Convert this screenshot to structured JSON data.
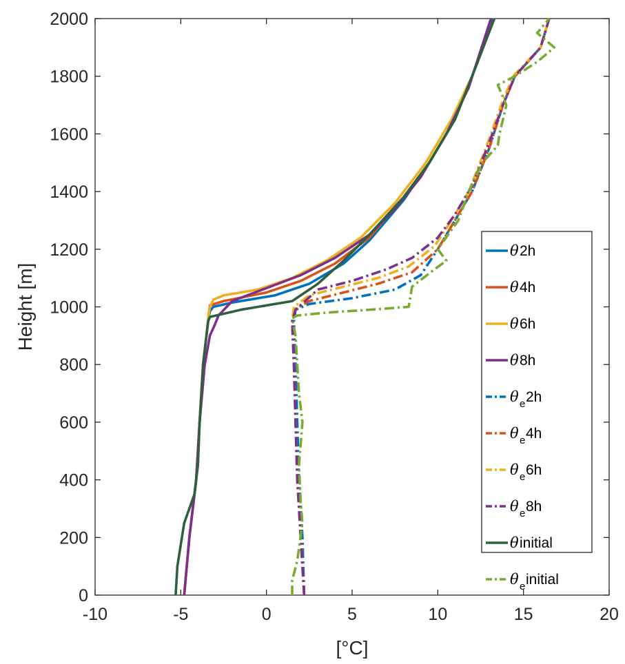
{
  "chart_data": {
    "type": "line",
    "title": "",
    "xlabel": "[°C]",
    "ylabel": "Height [m]",
    "xlim": [
      -10,
      20
    ],
    "ylim": [
      0,
      2000
    ],
    "xticks": [
      -10,
      -5,
      0,
      5,
      10,
      15,
      20
    ],
    "xtick_labels": [
      "-10",
      "-5",
      "0",
      "5",
      "10",
      "15",
      "20"
    ],
    "yticks": [
      0,
      200,
      400,
      600,
      800,
      1000,
      1200,
      1400,
      1600,
      1800,
      2000
    ],
    "ytick_labels": [
      "0",
      "200",
      "400",
      "600",
      "800",
      "1000",
      "1200",
      "1400",
      "1600",
      "1800",
      "2000"
    ],
    "grid": false,
    "legend_position": "right, middle",
    "series": [
      {
        "name": "θ 2h",
        "sym": "θ",
        "sub": "",
        "label": " 2h",
        "color": "#0072BD",
        "dash": "solid",
        "x": [
          -4.8,
          -4.5,
          -4.1,
          -3.9,
          -3.7,
          -3.5,
          -3.4,
          -3.3,
          -3.1,
          -2.0,
          0.5,
          2.5,
          4.5,
          6.0,
          8.0,
          9.5,
          11.0,
          12.0,
          13.2
        ],
        "y": [
          0,
          200,
          400,
          600,
          800,
          900,
          950,
          985,
          1000,
          1015,
          1040,
          1080,
          1150,
          1230,
          1370,
          1500,
          1650,
          1800,
          2000
        ]
      },
      {
        "name": "θ 4h",
        "sym": "θ",
        "sub": "",
        "label": " 4h",
        "color": "#D95319",
        "dash": "solid",
        "x": [
          -4.8,
          -4.5,
          -4.1,
          -3.9,
          -3.7,
          -3.5,
          -3.4,
          -3.3,
          -2.5,
          0.0,
          2.0,
          4.0,
          6.0,
          8.0,
          9.5,
          11.0,
          12.0,
          13.3
        ],
        "y": [
          0,
          200,
          400,
          600,
          800,
          900,
          960,
          1005,
          1020,
          1050,
          1090,
          1150,
          1240,
          1380,
          1500,
          1650,
          1800,
          2000
        ]
      },
      {
        "name": "θ 6h",
        "sym": "θ",
        "sub": "",
        "label": " 6h",
        "color": "#EDB120",
        "dash": "solid",
        "x": [
          -4.8,
          -4.5,
          -4.1,
          -3.9,
          -3.7,
          -3.5,
          -3.4,
          -3.3,
          -3.1,
          -2.5,
          -0.5,
          1.5,
          3.5,
          5.5,
          7.5,
          9.3,
          10.8,
          12.0,
          13.3
        ],
        "y": [
          0,
          200,
          400,
          600,
          800,
          900,
          960,
          1000,
          1025,
          1040,
          1060,
          1100,
          1160,
          1240,
          1360,
          1500,
          1650,
          1800,
          2000
        ]
      },
      {
        "name": "θ 8h",
        "sym": "θ",
        "sub": "",
        "label": " 8h",
        "color": "#7E2F8E",
        "dash": "solid",
        "x": [
          -4.8,
          -4.5,
          -4.1,
          -3.9,
          -3.6,
          -3.3,
          -3.0,
          -2.8,
          -2.0,
          0.0,
          2.0,
          4.0,
          6.0,
          7.5,
          9.0,
          10.5,
          11.8,
          13.1
        ],
        "y": [
          0,
          200,
          400,
          600,
          800,
          900,
          940,
          970,
          1020,
          1065,
          1110,
          1170,
          1250,
          1340,
          1450,
          1600,
          1760,
          2000
        ]
      },
      {
        "name": "θe 2h",
        "sym": "θ",
        "sub": "e",
        "label": " 2h",
        "color": "#0072BD",
        "dash": "dashdot",
        "x": [
          2.2,
          2.1,
          1.9,
          1.8,
          1.7,
          1.6,
          1.7,
          2.5,
          5.0,
          7.5,
          9.0,
          10.0,
          11.0,
          12.0,
          13.0,
          13.8,
          14.5,
          16.0,
          16.5
        ],
        "y": [
          0,
          200,
          400,
          600,
          800,
          950,
          990,
          1010,
          1030,
          1060,
          1110,
          1200,
          1300,
          1400,
          1550,
          1700,
          1800,
          1900,
          2000
        ]
      },
      {
        "name": "θe 4h",
        "sym": "θ",
        "sub": "e",
        "label": " 4h",
        "color": "#D95319",
        "dash": "dashdot",
        "x": [
          2.2,
          2.0,
          1.8,
          1.7,
          1.6,
          1.5,
          1.6,
          2.5,
          4.5,
          6.5,
          8.5,
          10.0,
          11.0,
          12.0,
          13.0,
          13.8,
          14.5,
          16.0,
          16.5
        ],
        "y": [
          0,
          200,
          400,
          600,
          800,
          950,
          990,
          1020,
          1050,
          1080,
          1120,
          1200,
          1300,
          1400,
          1550,
          1700,
          1800,
          1900,
          2000
        ]
      },
      {
        "name": "θe 6h",
        "sym": "θ",
        "sub": "e",
        "label": " 6h",
        "color": "#EDB120",
        "dash": "dashdot",
        "x": [
          2.2,
          2.0,
          1.8,
          1.7,
          1.6,
          1.5,
          1.6,
          2.5,
          4.5,
          6.5,
          8.3,
          9.8,
          10.8,
          11.8,
          12.8,
          13.7,
          14.4,
          16.0,
          16.5
        ],
        "y": [
          0,
          200,
          400,
          600,
          800,
          950,
          1000,
          1040,
          1070,
          1100,
          1140,
          1210,
          1300,
          1400,
          1550,
          1700,
          1800,
          1900,
          2000
        ]
      },
      {
        "name": "θe 8h",
        "sym": "θ",
        "sub": "e",
        "label": " 8h",
        "color": "#7E2F8E",
        "dash": "dashdot",
        "x": [
          2.2,
          2.0,
          1.8,
          1.7,
          1.6,
          1.5,
          1.7,
          3.0,
          5.0,
          7.0,
          8.5,
          10.0,
          11.0,
          12.0,
          13.0,
          13.8,
          14.5,
          16.0,
          16.5
        ],
        "y": [
          0,
          200,
          400,
          600,
          800,
          950,
          990,
          1060,
          1090,
          1130,
          1170,
          1240,
          1320,
          1420,
          1570,
          1700,
          1800,
          1900,
          2000
        ]
      },
      {
        "name": "θ initial",
        "sym": "θ",
        "sub": "",
        "label": " initial",
        "color": "#2F5F3F",
        "dash": "solid",
        "x": [
          -5.3,
          -5.2,
          -4.8,
          -4.2,
          -4.0,
          -3.9,
          -3.7,
          -3.5,
          -3.4,
          -3.3,
          -1.5,
          1.5,
          3.0,
          4.5,
          6.0,
          8.0,
          9.5,
          11.0,
          12.0,
          13.3
        ],
        "y": [
          0,
          100,
          250,
          350,
          450,
          600,
          800,
          900,
          950,
          965,
          990,
          1020,
          1080,
          1160,
          1250,
          1380,
          1500,
          1650,
          1800,
          2000
        ]
      },
      {
        "name": "θe initial",
        "sym": "θ",
        "sub": "e",
        "label": " initial",
        "color": "#77AC30",
        "dash": "dashdot",
        "x": [
          1.5,
          1.5,
          1.8,
          2.1,
          2.0,
          1.9,
          2.1,
          1.9,
          1.8,
          1.7,
          1.5,
          1.8,
          3.5,
          6.0,
          8.3,
          8.5,
          9.8,
          10.5,
          10.0,
          11.2,
          11.8,
          12.6,
          13.5,
          13.6,
          14.0,
          13.5,
          14.5,
          15.8,
          16.8,
          15.8,
          16.5
        ],
        "y": [
          0,
          50,
          120,
          250,
          320,
          450,
          600,
          700,
          800,
          900,
          960,
          970,
          980,
          990,
          1000,
          1070,
          1130,
          1160,
          1200,
          1300,
          1400,
          1500,
          1560,
          1600,
          1700,
          1770,
          1800,
          1850,
          1900,
          1950,
          2000
        ]
      }
    ]
  }
}
